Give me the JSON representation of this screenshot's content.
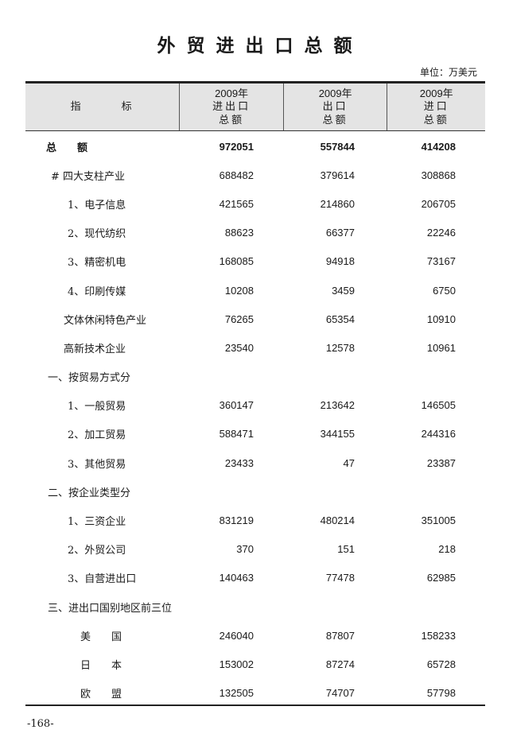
{
  "title": "外贸进出口总额",
  "unit": "单位：万美元",
  "header": {
    "indicator": "指　　　标",
    "columns": [
      {
        "year": "2009年",
        "line1": "进出口",
        "line2": "总额"
      },
      {
        "year": "2009年",
        "line1": "出口",
        "line2": "总额"
      },
      {
        "year": "2009年",
        "line1": "进口",
        "line2": "总额"
      }
    ]
  },
  "rows": [
    {
      "label": "总　　额",
      "values": [
        "972051",
        "557844",
        "414208"
      ]
    },
    {
      "label": "# 四大支柱产业",
      "values": [
        "688482",
        "379614",
        "308868"
      ]
    },
    {
      "label": "1、电子信息",
      "values": [
        "421565",
        "214860",
        "206705"
      ]
    },
    {
      "label": "2、现代纺织",
      "values": [
        "88623",
        "66377",
        "22246"
      ]
    },
    {
      "label": "3、精密机电",
      "values": [
        "168085",
        "94918",
        "73167"
      ]
    },
    {
      "label": "4、印刷传媒",
      "values": [
        "10208",
        "3459",
        "6750"
      ]
    },
    {
      "label": "文体休闲特色产业",
      "values": [
        "76265",
        "65354",
        "10910"
      ]
    },
    {
      "label": "高新技术企业",
      "values": [
        "23540",
        "12578",
        "10961"
      ]
    },
    {
      "label": "一、按贸易方式分",
      "values": [
        "",
        "",
        ""
      ]
    },
    {
      "label": "1、一般贸易",
      "values": [
        "360147",
        "213642",
        "146505"
      ]
    },
    {
      "label": "2、加工贸易",
      "values": [
        "588471",
        "344155",
        "244316"
      ]
    },
    {
      "label": "3、其他贸易",
      "values": [
        "23433",
        "47",
        "23387"
      ]
    },
    {
      "label": "二、按企业类型分",
      "values": [
        "",
        "",
        ""
      ]
    },
    {
      "label": "1、三资企业",
      "values": [
        "831219",
        "480214",
        "351005"
      ]
    },
    {
      "label": "2、外贸公司",
      "values": [
        "370",
        "151",
        "218"
      ]
    },
    {
      "label": "3、自营进出口",
      "values": [
        "140463",
        "77478",
        "62985"
      ]
    },
    {
      "label": "三、进出口国别地区前三位",
      "values": [
        "",
        "",
        ""
      ]
    },
    {
      "label": "美　　国",
      "values": [
        "246040",
        "87807",
        "158233"
      ]
    },
    {
      "label": "日　　本",
      "values": [
        "153002",
        "87274",
        "65728"
      ]
    },
    {
      "label": "欧　　盟",
      "values": [
        "132505",
        "74707",
        "57798"
      ]
    }
  ],
  "page_number": "-168-"
}
